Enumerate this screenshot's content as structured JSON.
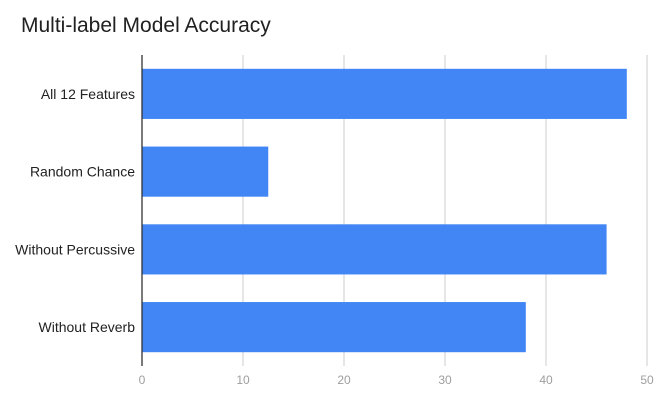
{
  "chart_data": {
    "type": "bar",
    "orientation": "horizontal",
    "title": "Multi-label Model Accuracy",
    "xlabel": "",
    "ylabel": "",
    "categories": [
      "All 12 Features",
      "Random Chance",
      "Without Percussive",
      "Without Reverb"
    ],
    "values": [
      48,
      12.5,
      46,
      38
    ],
    "xlim": [
      0,
      50
    ],
    "xticks": [
      0,
      10,
      20,
      30,
      40,
      50
    ],
    "grid": true,
    "legend": "none",
    "bar_color": "#4285f4"
  }
}
